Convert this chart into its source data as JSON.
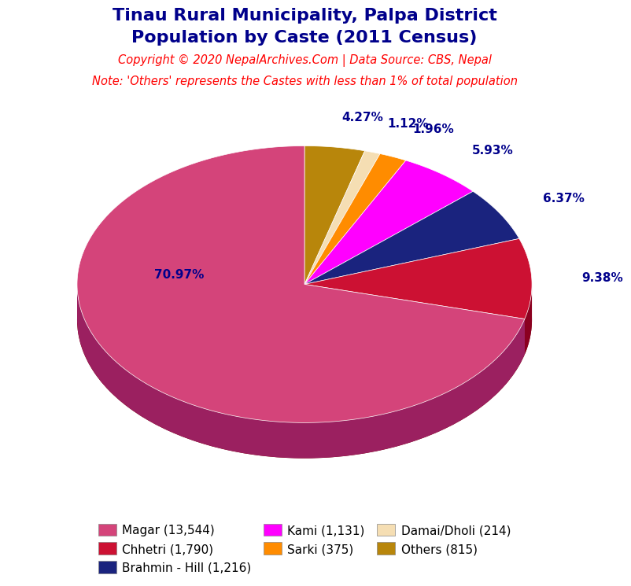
{
  "title_line1": "Tinau Rural Municipality, Palpa District",
  "title_line2": "Population by Caste (2011 Census)",
  "copyright_text": "Copyright © 2020 NepalArchives.Com | Data Source: CBS, Nepal",
  "note_text": "Note: 'Others' represents the Castes with less than 1% of total population",
  "title_color": "#00008B",
  "copyright_color": "#FF0000",
  "note_color": "#FF0000",
  "labels": [
    "Magar (13,544)",
    "Chhetri (1,790)",
    "Brahmin - Hill (1,216)",
    "Kami (1,131)",
    "Sarki (375)",
    "Damai/Dholi (214)",
    "Others (815)"
  ],
  "values": [
    70.97,
    9.38,
    6.37,
    5.93,
    1.96,
    1.12,
    4.27
  ],
  "colors": [
    "#D4447A",
    "#CC1133",
    "#1A237E",
    "#FF00FF",
    "#FF8C00",
    "#F5DEB3",
    "#B8860B"
  ],
  "pct_labels": [
    "70.97%",
    "9.38%",
    "6.37%",
    "5.93%",
    "1.96%",
    "1.12%",
    "4.27%"
  ],
  "pct_color": "#00008B",
  "shadow_color": "#7B0000",
  "background_color": "#FFFFFF",
  "depth_color_magar": "#9B2060",
  "depth_color_chhetri": "#8B0020",
  "depth_color_brahmin": "#0D1560",
  "depth_color_kami": "#CC00CC",
  "depth_color_sarki": "#CC7000",
  "depth_color_damai": "#C8B090",
  "depth_color_others": "#8B6508"
}
